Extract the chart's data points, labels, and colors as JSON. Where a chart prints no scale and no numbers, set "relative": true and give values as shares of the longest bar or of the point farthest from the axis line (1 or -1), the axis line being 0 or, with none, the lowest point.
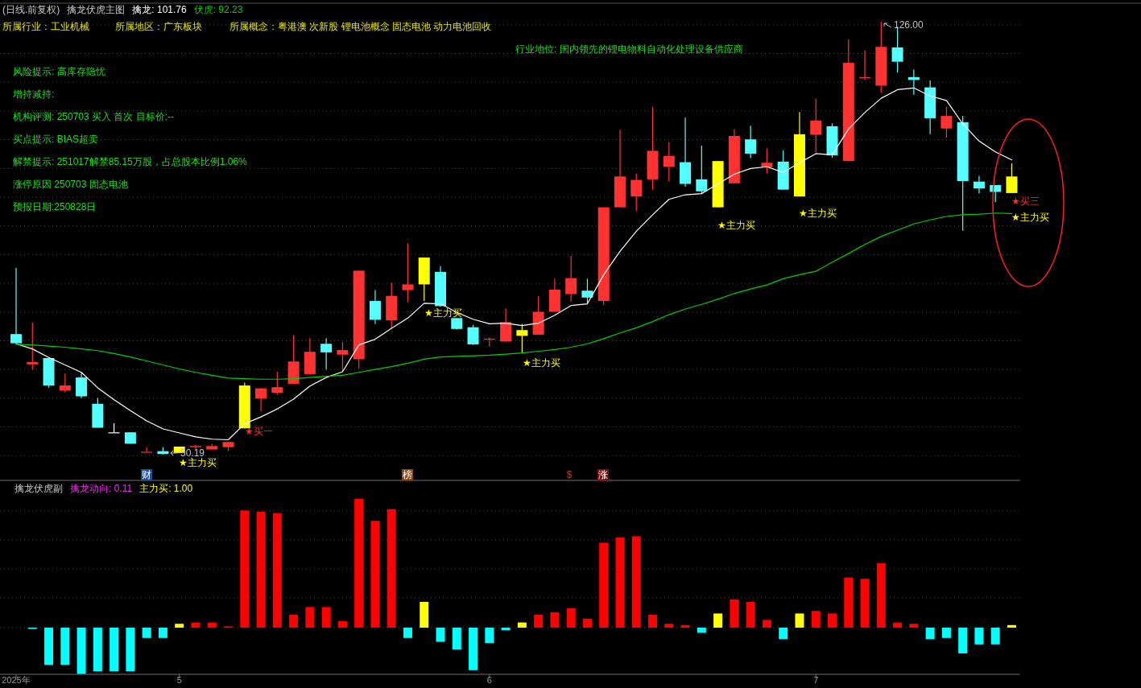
{
  "chart_data": [
    {
      "type": "candlestick",
      "title": "(日线.前复权)",
      "subtitle": "擒龙伏虎主图",
      "categories": [
        null,
        null,
        null,
        null,
        null,
        null,
        null,
        null,
        null,
        null,
        null,
        null,
        null,
        null,
        null,
        null,
        null,
        null,
        null,
        null,
        null,
        null,
        null,
        null,
        null,
        null,
        null,
        null,
        null,
        null,
        null,
        null,
        null,
        null,
        null,
        null,
        null,
        null,
        null,
        null,
        null,
        null,
        null,
        null,
        null,
        null,
        null,
        null,
        null,
        null,
        null,
        null,
        null,
        null,
        null,
        null,
        null,
        null,
        null,
        null,
        null,
        null
      ],
      "grid": true,
      "ohlc": [
        [
          71.3,
          82.9,
          69.6,
          69.7
        ],
        [
          66.0,
          73.3,
          65.1,
          66.4
        ],
        [
          67.1,
          67.1,
          61.9,
          62.3
        ],
        [
          61.4,
          64.4,
          61.1,
          62.3
        ],
        [
          63.7,
          64.6,
          60.1,
          60.4
        ],
        [
          59.1,
          60.1,
          54.9,
          54.9
        ],
        [
          54.1,
          55.7,
          54.0,
          54.1
        ],
        [
          54.1,
          54.1,
          52.1,
          52.1
        ],
        [
          50.7,
          51.5,
          50.7,
          50.7
        ],
        [
          50.8,
          51.5,
          50.19,
          50.3
        ],
        [
          50.5,
          51.6,
          50.5,
          51.6
        ],
        [
          51.5,
          51.9,
          51.1,
          51.7
        ],
        [
          51.1,
          52.1,
          51.1,
          51.7
        ],
        [
          51.5,
          52.4,
          50.8,
          52.4
        ],
        [
          54.8,
          62.8,
          54.8,
          62.3
        ],
        [
          60.0,
          61.8,
          57.8,
          61.8
        ],
        [
          61.0,
          64.7,
          60.7,
          62.0
        ],
        [
          62.6,
          71.1,
          62.6,
          66.5
        ],
        [
          64.3,
          70.6,
          64.2,
          68.2
        ],
        [
          69.6,
          70.6,
          65.1,
          68.1
        ],
        [
          67.7,
          69.9,
          64.7,
          68.5
        ],
        [
          66.9,
          82.4,
          65.3,
          82.4
        ],
        [
          77.1,
          79.0,
          73.1,
          73.8
        ],
        [
          73.7,
          80.3,
          72.3,
          78.0
        ],
        [
          79.0,
          87.2,
          76.9,
          80.0
        ],
        [
          80.0,
          84.7,
          77.1,
          84.7
        ],
        [
          82.2,
          83.2,
          76.1,
          76.2
        ],
        [
          74.1,
          74.1,
          72.1,
          72.2
        ],
        [
          72.5,
          72.9,
          69.4,
          69.5
        ],
        [
          70.5,
          70.7,
          69.1,
          70.5
        ],
        [
          70.0,
          75.8,
          70.0,
          73.4
        ],
        [
          72.0,
          73.1,
          68.0,
          71.0
        ],
        [
          71.2,
          77.9,
          71.2,
          75.2
        ],
        [
          75.2,
          81.0,
          75.2,
          79.1
        ],
        [
          78.3,
          85.0,
          77.0,
          81.1
        ],
        [
          78.9,
          81.0,
          76.7,
          77.7
        ],
        [
          77.1,
          93.5,
          76.4,
          93.5
        ],
        [
          93.5,
          107.1,
          93.5,
          98.9
        ],
        [
          95.4,
          99.4,
          92.8,
          98.3
        ],
        [
          98.4,
          111.1,
          96.6,
          103.4
        ],
        [
          100.6,
          104.9,
          98.1,
          102.5
        ],
        [
          101.4,
          109.2,
          97.1,
          97.6
        ],
        [
          98.4,
          104.3,
          95.9,
          96.3
        ],
        [
          93.5,
          101.6,
          93.5,
          101.6
        ],
        [
          97.7,
          107.2,
          97.7,
          106.0
        ],
        [
          105.4,
          107.8,
          102.1,
          102.9
        ],
        [
          100.5,
          103.8,
          99.4,
          101.3
        ],
        [
          101.5,
          103.5,
          96.6,
          96.6
        ],
        [
          95.4,
          110.2,
          95.4,
          106.3
        ],
        [
          106.2,
          112.5,
          103.1,
          108.7
        ],
        [
          107.7,
          108.2,
          102.2,
          102.6
        ],
        [
          101.6,
          122.9,
          101.6,
          118.8
        ],
        [
          116.3,
          121.0,
          115.8,
          116.3
        ],
        [
          114.8,
          126.0,
          113.6,
          121.6
        ],
        [
          121.5,
          125.1,
          117.1,
          119.0
        ],
        [
          116.3,
          117.6,
          113.2,
          115.8
        ],
        [
          114.5,
          115.7,
          106.3,
          109.1
        ],
        [
          107.3,
          111.1,
          105.7,
          109.5
        ],
        [
          108.4,
          109.5,
          89.4,
          98.1
        ],
        [
          98.0,
          99.0,
          95.9,
          96.8
        ],
        [
          97.4,
          97.4,
          94.4,
          96.2
        ],
        [
          96.0,
          101.2,
          96.0,
          98.9
        ]
      ],
      "colors": [
        "#54ffff",
        "#ff3232",
        "#54ffff",
        "#ff3232",
        "#54ffff",
        "#54ffff",
        "#ffffff",
        "#54ffff",
        "#ff3232",
        "#54ffff",
        "#ffff00",
        "#ff3232",
        "#ff3232",
        "#ff3232",
        "#ffff00",
        "#ff3232",
        "#ff3232",
        "#ff3232",
        "#ff3232",
        "#54ffff",
        "#ff3232",
        "#ff3232",
        "#54ffff",
        "#ff3232",
        "#ff3232",
        "#ffff00",
        "#54ffff",
        "#54ffff",
        "#54ffff",
        "#ff3232",
        "#ff3232",
        "#ffff00",
        "#ff3232",
        "#ff3232",
        "#ff3232",
        "#54ffff",
        "#ff3232",
        "#ff3232",
        "#ff3232",
        "#ff3232",
        "#ff3232",
        "#54ffff",
        "#54ffff",
        "#ffff00",
        "#ff3232",
        "#54ffff",
        "#ff3232",
        "#54ffff",
        "#ffff00",
        "#ff3232",
        "#54ffff",
        "#ff3232",
        "#ff3232",
        "#ff3232",
        "#54ffff",
        "#54ffff",
        "#54ffff",
        "#ff3232",
        "#54ffff",
        "#54ffff",
        "#54ffff",
        "#ffff00"
      ],
      "series": [
        {
          "name": "擒龙: 101.76",
          "type": "line",
          "color": "#ffffff",
          "values": [
            69.6,
            68.7,
            67.2,
            65.9,
            64.6,
            61.9,
            59.8,
            57.9,
            56.1,
            54.7,
            54.0,
            53.3,
            52.9,
            52.8,
            55.6,
            56.8,
            58.2,
            59.9,
            62.2,
            63.7,
            64.7,
            69.4,
            70.4,
            72.3,
            74.1,
            76.7,
            76.6,
            75.1,
            73.9,
            73.1,
            73.2,
            72.8,
            73.2,
            74.6,
            76.3,
            76.6,
            81.7,
            85.8,
            89.3,
            92.2,
            94.9,
            95.7,
            95.9,
            97.6,
            99.3,
            100.3,
            100.6,
            99.6,
            101.3,
            102.9,
            102.7,
            107.2,
            110.1,
            112.6,
            114.1,
            114.4,
            113.0,
            112.2,
            108.1,
            105.1,
            103.2,
            101.8
          ]
        },
        {
          "name": "伏虎: 92.23",
          "type": "line",
          "color": "#00d000",
          "values": [
            69.5,
            69.4,
            69.2,
            69.0,
            68.7,
            68.4,
            67.9,
            67.3,
            66.6,
            65.9,
            65.2,
            64.6,
            64.1,
            63.6,
            63.5,
            63.4,
            63.4,
            63.5,
            63.7,
            63.9,
            64.1,
            64.6,
            65.1,
            65.6,
            66.2,
            66.9,
            67.3,
            67.4,
            67.5,
            67.6,
            67.8,
            68.0,
            68.3,
            68.6,
            69.0,
            69.6,
            70.5,
            71.5,
            72.4,
            73.5,
            74.7,
            75.7,
            76.5,
            77.4,
            78.4,
            79.2,
            79.9,
            81.0,
            81.7,
            82.3,
            83.9,
            85.4,
            87.0,
            88.4,
            89.5,
            90.6,
            91.3,
            91.9,
            92.2,
            92.3,
            92.5,
            92.4
          ]
        }
      ],
      "annotations": [
        "所属行业：工业机械",
        "所属地区：广东板块",
        "所属概念：粤港澳 次新股 锂电池概念 固态电池 动力电池回收",
        "行业地位: 国内领先的锂电物料自动化处理设备供应商",
        "风险提示: 高库存隐忧",
        "增持减持:",
        "机构评测: 250703 买入 首次 目标价:--",
        "买点提示: BIAS超卖",
        "解禁提示: 251017解禁85.15万股，占总股本比例1.06%",
        "涨停原因 250703 固态电池",
        "预报日期:250828日",
        "126.00",
        "50.19",
        "★主力买",
        "★买一",
        "★主力买",
        "★主力买",
        "★主力买",
        "★主力买",
        "★买三",
        "★主力买",
        "财",
        "榜",
        "$",
        "涨"
      ]
    },
    {
      "type": "bar",
      "title": "擒龙伏虎副",
      "relative": true,
      "grid": true,
      "categories": [
        "2025年",
        null,
        null,
        null,
        null,
        null,
        null,
        null,
        null,
        null,
        "5",
        null,
        null,
        null,
        null,
        null,
        null,
        null,
        null,
        null,
        null,
        null,
        null,
        null,
        null,
        null,
        null,
        null,
        null,
        "6",
        null,
        null,
        null,
        null,
        null,
        null,
        null,
        null,
        null,
        null,
        null,
        null,
        null,
        null,
        null,
        null,
        null,
        null,
        null,
        "7",
        null,
        null,
        null,
        null,
        null,
        null,
        null,
        null,
        null,
        null,
        null,
        null
      ],
      "values": [
        0,
        -0.01,
        -0.29,
        -0.29,
        -0.36,
        -0.34,
        -0.34,
        -0.34,
        -0.08,
        -0.08,
        0.03,
        0.04,
        0.04,
        0.01,
        0.91,
        0.9,
        0.89,
        0.1,
        0.16,
        0.16,
        0.05,
        1,
        0.83,
        0.92,
        -0.08,
        0.2,
        -0.11,
        -0.17,
        -0.33,
        -0.12,
        -0.02,
        0.04,
        0.1,
        0.12,
        0.15,
        0.07,
        0.66,
        0.7,
        0.71,
        0.1,
        0.03,
        0.02,
        -0.04,
        0.11,
        0.22,
        0.2,
        0.06,
        -0.09,
        0.11,
        0.13,
        0.11,
        0.39,
        0.38,
        0.5,
        0.04,
        0.03,
        -0.09,
        -0.08,
        -0.2,
        -0.13,
        -0.13,
        0.02
      ],
      "colors": [
        "#00ffff",
        "#00ffff",
        "#00ffff",
        "#00ffff",
        "#00ffff",
        "#00ffff",
        "#00ffff",
        "#00ffff",
        "#00ffff",
        "#00ffff",
        "#ffff00",
        "#ff0000",
        "#ff0000",
        "#ff0000",
        "#ff0000",
        "#ff0000",
        "#ff0000",
        "#ff0000",
        "#ff0000",
        "#ff0000",
        "#ff0000",
        "#ff0000",
        "#ff0000",
        "#ff0000",
        "#00ffff",
        "#ffff00",
        "#00ffff",
        "#00ffff",
        "#00ffff",
        "#00ffff",
        "#00ffff",
        "#ffff00",
        "#ff0000",
        "#ff0000",
        "#ff0000",
        "#ff0000",
        "#ff0000",
        "#ff0000",
        "#ff0000",
        "#ff0000",
        "#ff0000",
        "#ff0000",
        "#00ffff",
        "#ffff00",
        "#ff0000",
        "#ff0000",
        "#ff0000",
        "#00ffff",
        "#ffff00",
        "#ff0000",
        "#ff0000",
        "#ff0000",
        "#ff0000",
        "#ff0000",
        "#ff0000",
        "#ff0000",
        "#00ffff",
        "#00ffff",
        "#00ffff",
        "#00ffff",
        "#00ffff",
        "#ffff00"
      ],
      "annotations": [
        "擒龙动向: 0.11",
        "主力买: 1.00"
      ]
    }
  ]
}
